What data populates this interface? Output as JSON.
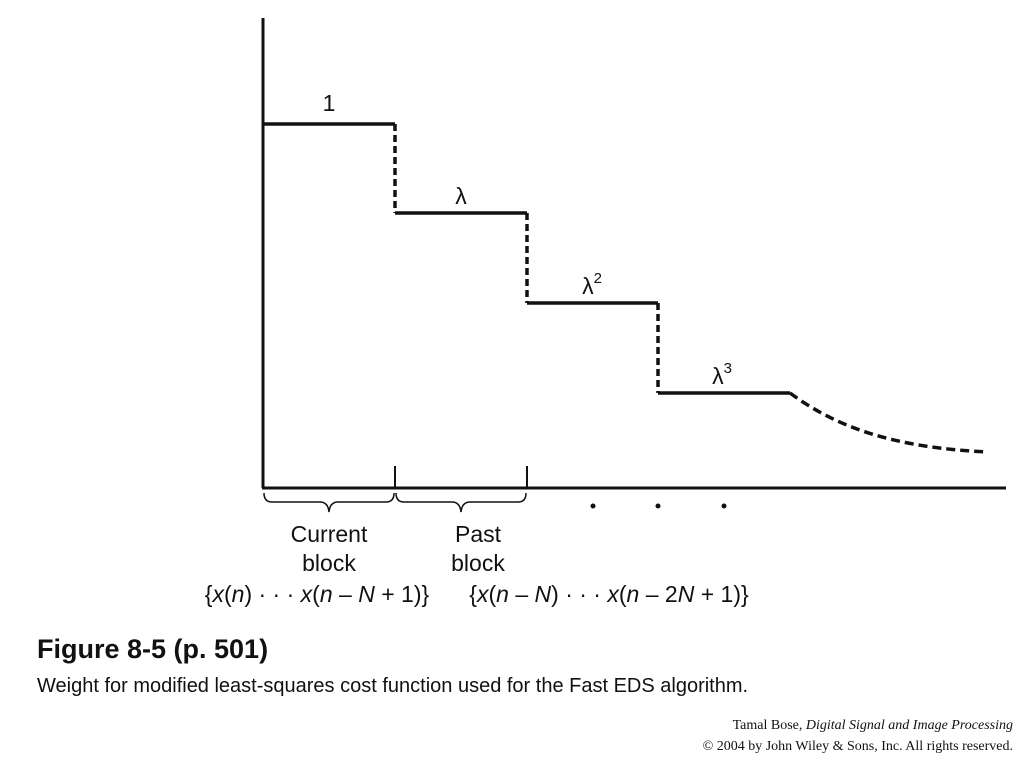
{
  "figure": {
    "levels": [
      {
        "base": "1"
      },
      {
        "base": "λ"
      },
      {
        "base": "λ",
        "sup": "2"
      },
      {
        "base": "λ",
        "sup": "3"
      }
    ],
    "blocks": [
      {
        "line1": "Current",
        "line2": "block",
        "formula": "{x(n) · · · x(n – N + 1)}"
      },
      {
        "line1": "Past",
        "line2": "block",
        "formula": "{x(n – N) · · · x(n – 2N + 1)}"
      }
    ],
    "title": "Figure 8-5  (p. 501)",
    "caption": "Weight for modified least-squares cost function used for the Fast EDS algorithm."
  },
  "credit": {
    "author": "Tamal Bose,",
    "book": "Digital Signal and Image Processing",
    "copyright": "© 2004 by John Wiley & Sons, Inc.  All rights reserved."
  }
}
